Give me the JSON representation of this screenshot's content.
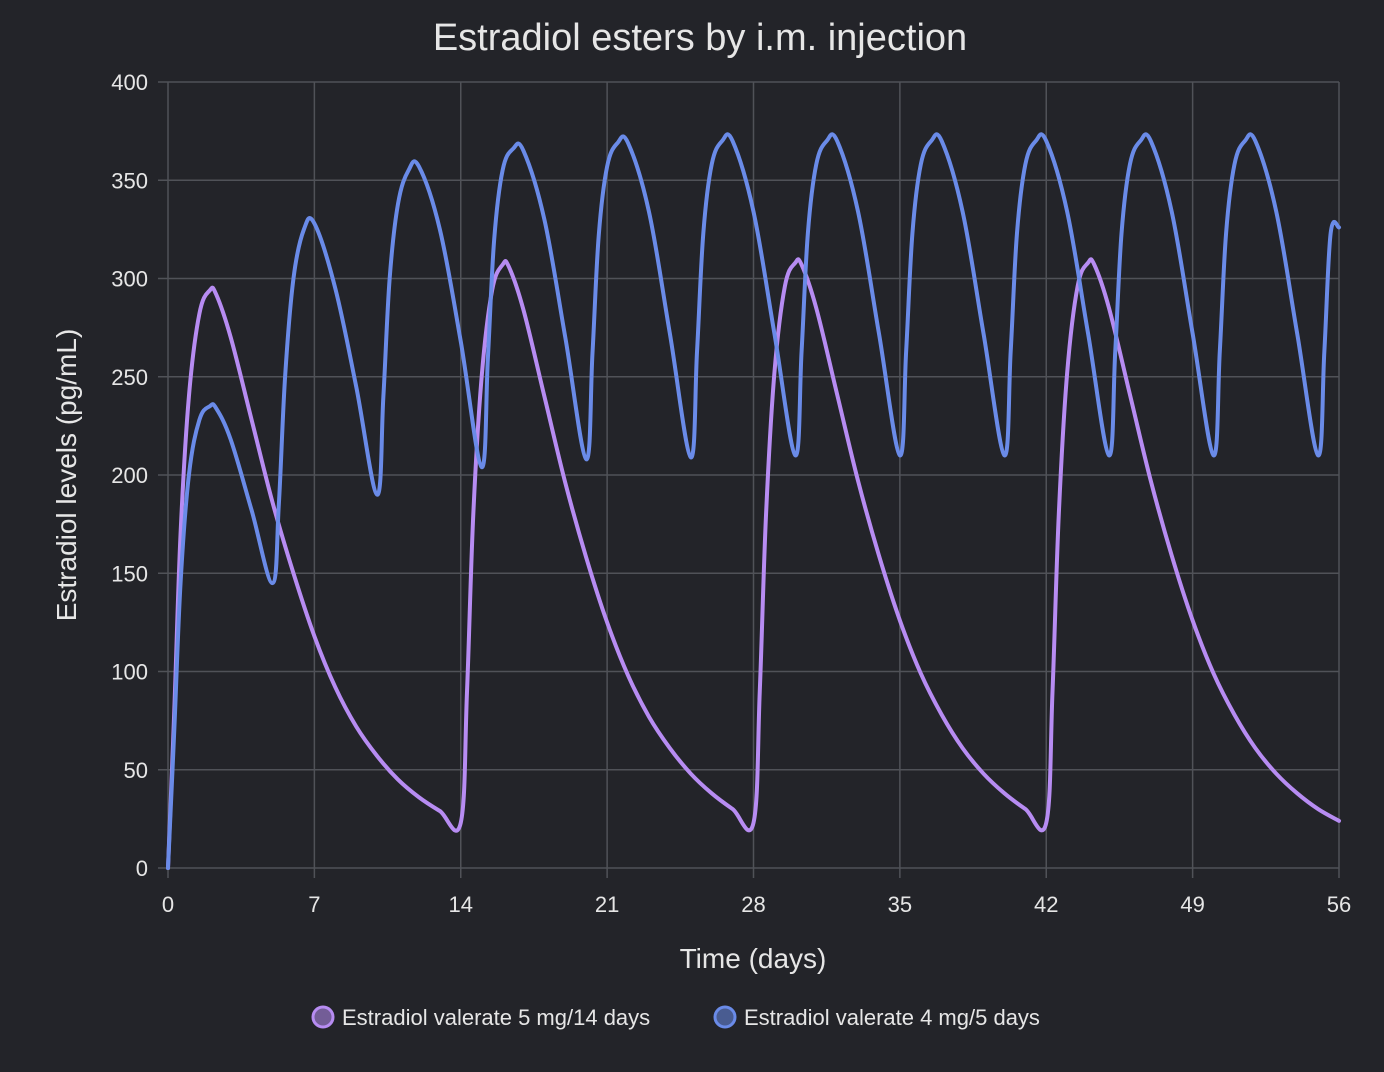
{
  "chart_data": {
    "type": "line",
    "title": "Estradiol esters by i.m. injection",
    "xlabel": "Time (days)",
    "ylabel": "Estradiol levels (pg/mL)",
    "xlim": [
      0,
      56
    ],
    "ylim": [
      0,
      400
    ],
    "xticks": [
      "0",
      "7",
      "14",
      "21",
      "28",
      "35",
      "42",
      "49",
      "56"
    ],
    "yticks": [
      "0",
      "50",
      "100",
      "150",
      "200",
      "250",
      "300",
      "350",
      "400"
    ],
    "grid": true,
    "legend_position": "bottom",
    "series": [
      {
        "name": "Estradiol valerate 5 mg/14 days",
        "color": "#b78cf2",
        "x": [
          0,
          0.3,
          0.6,
          1,
          1.5,
          2,
          2.3,
          3,
          4,
          5,
          6,
          7,
          8,
          9,
          10,
          11,
          12,
          13,
          14,
          14.3,
          14.6,
          15,
          15.5,
          16,
          16.3,
          17,
          18,
          19,
          20,
          21,
          22,
          23,
          24,
          25,
          26,
          27,
          28,
          28.3,
          28.6,
          29,
          29.5,
          30,
          30.3,
          31,
          32,
          33,
          34,
          35,
          36,
          37,
          38,
          39,
          40,
          41,
          42,
          42.3,
          42.6,
          43,
          43.5,
          44,
          44.3,
          45,
          46,
          47,
          48,
          49,
          50,
          51,
          52,
          53,
          54,
          55,
          56
        ],
        "y": [
          0,
          80,
          170,
          240,
          282,
          294,
          292,
          270,
          228,
          186,
          150,
          118,
          92,
          72,
          57,
          45,
          36,
          29,
          23,
          90,
          180,
          250,
          294,
          307,
          306,
          284,
          240,
          196,
          158,
          125,
          98,
          77,
          61,
          48,
          38,
          30,
          23,
          90,
          180,
          252,
          296,
          308,
          307,
          285,
          241,
          197,
          159,
          126,
          99,
          78,
          61,
          48,
          38,
          30,
          23,
          90,
          180,
          252,
          296,
          308,
          307,
          285,
          241,
          197,
          159,
          126,
          99,
          78,
          61,
          48,
          38,
          30,
          24
        ]
      },
      {
        "name": "Estradiol valerate 4 mg/5 days",
        "color": "#6a8be8",
        "x": [
          0,
          0.3,
          0.6,
          1,
          1.5,
          2,
          2.3,
          3,
          4,
          5,
          5.3,
          5.6,
          6,
          6.5,
          7,
          8,
          9,
          10,
          10.3,
          10.6,
          11,
          11.5,
          12,
          13,
          14,
          15,
          15.3,
          15.6,
          16,
          16.5,
          17,
          18,
          19,
          20,
          20.3,
          20.6,
          21,
          21.5,
          22,
          23,
          24,
          25,
          25.3,
          25.6,
          26,
          26.5,
          27,
          28,
          29,
          30,
          30.3,
          30.6,
          31,
          31.5,
          32,
          33,
          34,
          35,
          35.3,
          35.6,
          36,
          36.5,
          37,
          38,
          39,
          40,
          40.3,
          40.6,
          41,
          41.5,
          42,
          43,
          44,
          45,
          45.3,
          45.6,
          46,
          46.5,
          47,
          48,
          49,
          50,
          50.3,
          50.6,
          51,
          51.5,
          52,
          53,
          54,
          55,
          55.3,
          55.6,
          56
        ],
        "y": [
          0,
          70,
          145,
          200,
          228,
          235,
          234,
          218,
          182,
          145,
          185,
          250,
          300,
          325,
          328,
          295,
          245,
          190,
          240,
          300,
          338,
          355,
          357,
          325,
          268,
          204,
          260,
          320,
          355,
          366,
          365,
          330,
          270,
          208,
          262,
          322,
          357,
          369,
          369,
          334,
          272,
          209,
          263,
          323,
          358,
          370,
          370,
          334,
          272,
          210,
          263,
          323,
          358,
          370,
          370,
          334,
          272,
          210,
          263,
          323,
          358,
          370,
          370,
          334,
          272,
          210,
          263,
          323,
          358,
          370,
          370,
          334,
          272,
          210,
          263,
          323,
          358,
          370,
          370,
          334,
          272,
          210,
          263,
          323,
          358,
          370,
          370,
          334,
          272,
          210,
          263,
          323,
          326
        ]
      }
    ]
  }
}
